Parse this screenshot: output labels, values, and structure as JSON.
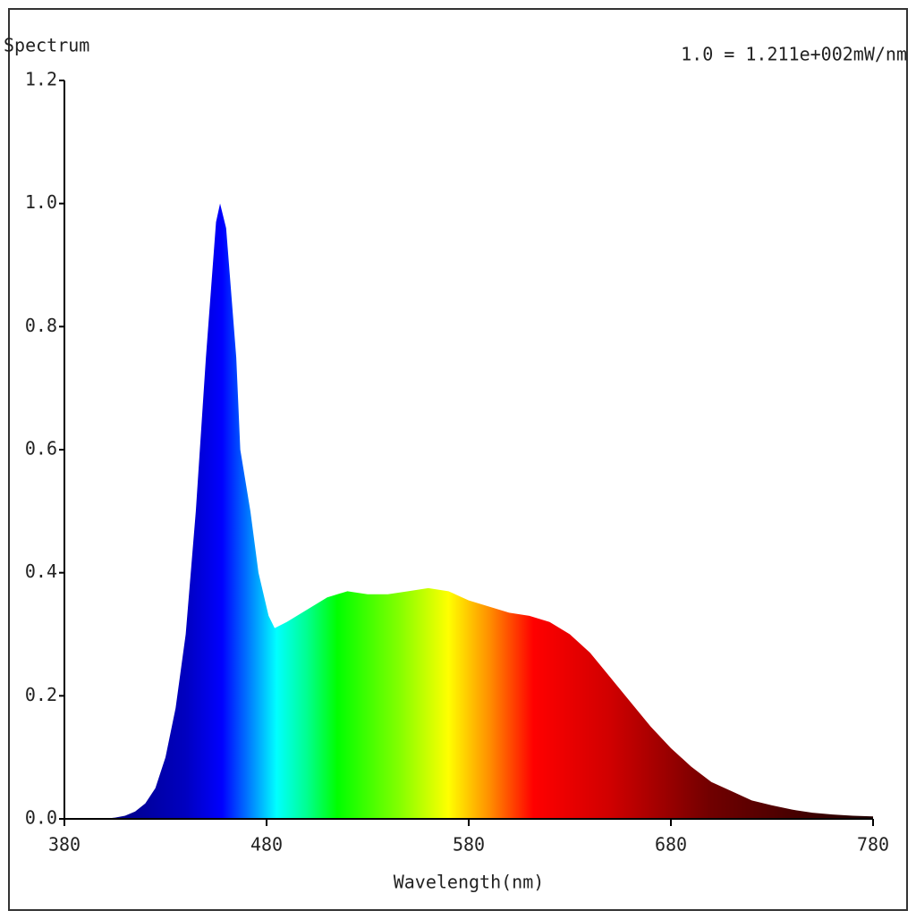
{
  "chart_data": {
    "type": "area",
    "title": "Spectrum",
    "annotation": "1.0 = 1.211e+002mW/nm",
    "xlabel": "Wavelength(nm)",
    "x": [
      380,
      400,
      405,
      410,
      415,
      420,
      425,
      430,
      435,
      440,
      445,
      450,
      455,
      457,
      460,
      465,
      467,
      472,
      476,
      481,
      484,
      490,
      500,
      510,
      520,
      530,
      540,
      550,
      560,
      570,
      580,
      590,
      600,
      610,
      620,
      630,
      640,
      650,
      660,
      670,
      680,
      690,
      700,
      710,
      720,
      730,
      740,
      750,
      760,
      770,
      780
    ],
    "values": [
      0,
      0,
      0.002,
      0.005,
      0.012,
      0.025,
      0.05,
      0.1,
      0.18,
      0.3,
      0.5,
      0.75,
      0.97,
      1.0,
      0.96,
      0.75,
      0.6,
      0.5,
      0.4,
      0.33,
      0.31,
      0.32,
      0.34,
      0.36,
      0.37,
      0.365,
      0.365,
      0.37,
      0.375,
      0.37,
      0.355,
      0.345,
      0.335,
      0.33,
      0.32,
      0.3,
      0.27,
      0.23,
      0.19,
      0.15,
      0.115,
      0.085,
      0.06,
      0.045,
      0.03,
      0.022,
      0.015,
      0.01,
      0.007,
      0.005,
      0.004
    ],
    "xlim": [
      380,
      780
    ],
    "xticks": [
      380,
      480,
      580,
      680,
      780
    ],
    "ylim": [
      0,
      1.2
    ],
    "yticks": [
      {
        "value": 0,
        "label": "0.0"
      },
      0.2,
      0.4,
      0.6,
      0.8,
      {
        "value": 1,
        "label": "1.0"
      },
      1.2
    ]
  }
}
